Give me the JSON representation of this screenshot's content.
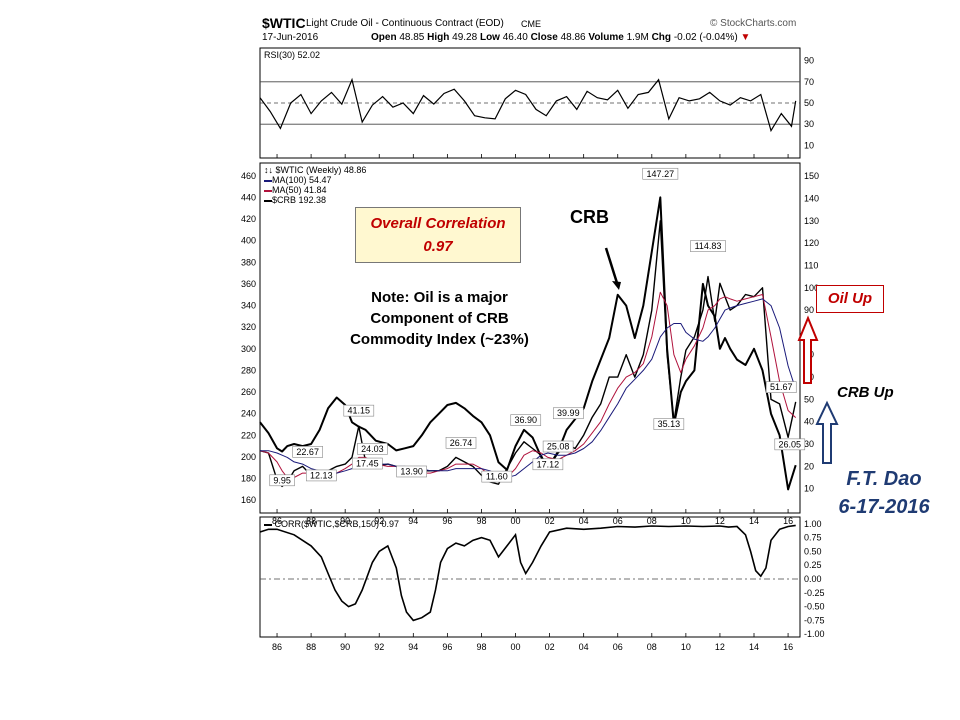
{
  "header": {
    "symbol": "$WTIC",
    "name": "Light Crude Oil - Continuous Contract (EOD)",
    "exchange": "CME",
    "source": "© StockCharts.com",
    "date": "17-Jun-2016",
    "open_label": "Open",
    "open": "48.85",
    "high_label": "High",
    "high": "49.28",
    "low_label": "Low",
    "low": "46.40",
    "close_label": "Close",
    "close": "48.86",
    "volume_label": "Volume",
    "volume": "1.9M",
    "chg_label": "Chg",
    "chg": "-0.02 (-0.04%)"
  },
  "colors": {
    "oil": "#000000",
    "crb": "#000000",
    "ma100": "#1a1a7a",
    "ma50": "#b0123c",
    "oil_up_arrow": "#c00000",
    "crb_up_arrow": "#1f3b73",
    "correlation_text": "#c00000",
    "author_text": "#1f3b73"
  },
  "chart_data": [
    {
      "type": "line",
      "title": "RSI(30) 52.02",
      "legend_label": "RSI(30) 52.02",
      "ylim": [
        0,
        100
      ],
      "yticks": [
        10,
        30,
        50,
        70,
        90
      ],
      "reference_lines": [
        30,
        50,
        70
      ],
      "x": [
        1985.0,
        1985.6,
        1986.2,
        1986.8,
        1987.4,
        1988.0,
        1988.6,
        1989.2,
        1989.8,
        1990.4,
        1991.0,
        1991.6,
        1992.2,
        1992.8,
        1993.4,
        1994.0,
        1994.6,
        1995.2,
        1995.8,
        1996.4,
        1997.0,
        1997.6,
        1998.2,
        1998.8,
        1999.4,
        2000.0,
        2000.6,
        2001.2,
        2001.8,
        2002.4,
        2003.0,
        2003.6,
        2004.2,
        2004.8,
        2005.4,
        2006.0,
        2006.6,
        2007.2,
        2007.8,
        2008.4,
        2009.0,
        2009.6,
        2010.2,
        2010.8,
        2011.4,
        2012.0,
        2012.6,
        2013.2,
        2013.8,
        2014.4,
        2015.0,
        2015.6,
        2016.2,
        2016.45
      ],
      "series": [
        {
          "values": [
            55,
            42,
            26,
            50,
            58,
            40,
            52,
            60,
            49,
            72,
            32,
            48,
            56,
            46,
            50,
            40,
            57,
            49,
            59,
            63,
            52,
            38,
            36,
            35,
            54,
            62,
            58,
            44,
            38,
            52,
            56,
            44,
            61,
            55,
            53,
            62,
            45,
            58,
            60,
            72,
            35,
            55,
            52,
            54,
            60,
            52,
            48,
            55,
            52,
            58,
            24,
            40,
            28,
            52.02
          ]
        }
      ]
    },
    {
      "type": "line",
      "title": "$WTIC (Weekly) 48.86",
      "legend": [
        "$WTIC (Weekly) 48.86",
        "MA(100) 54.47",
        "MA(50) 41.84",
        "$CRB 192.38"
      ],
      "x_ticks": [
        "86",
        "88",
        "90",
        "92",
        "94",
        "96",
        "98",
        "00",
        "02",
        "04",
        "06",
        "08",
        "10",
        "12",
        "14",
        "16"
      ],
      "xlim": [
        1985.0,
        2016.7
      ],
      "crb_axis_left": {
        "ylim": [
          150,
          470
        ],
        "yticks": [
          160,
          180,
          200,
          220,
          240,
          260,
          280,
          300,
          320,
          340,
          360,
          380,
          400,
          420,
          440,
          460
        ]
      },
      "oil_axis_right": {
        "ylim": [
          0,
          155
        ],
        "yticks": [
          10,
          20,
          30,
          40,
          50,
          60,
          70,
          80,
          90,
          100,
          110,
          120,
          130,
          140,
          150
        ]
      },
      "x": [
        1985.0,
        1985.5,
        1986.0,
        1986.3,
        1986.6,
        1987.0,
        1987.5,
        1988.0,
        1988.5,
        1989.0,
        1989.5,
        1990.0,
        1990.4,
        1990.8,
        1991.2,
        1991.8,
        1992.5,
        1993.0,
        1993.5,
        1994.0,
        1994.5,
        1995.0,
        1995.5,
        1996.0,
        1996.5,
        1997.0,
        1997.5,
        1998.0,
        1998.5,
        1999.0,
        1999.5,
        2000.0,
        2000.5,
        2001.0,
        2001.5,
        2001.9,
        2002.5,
        2003.0,
        2003.5,
        2004.0,
        2004.5,
        2005.0,
        2005.5,
        2006.0,
        2006.5,
        2007.0,
        2007.5,
        2008.0,
        2008.5,
        2008.9,
        2009.3,
        2009.7,
        2010.0,
        2010.5,
        2011.0,
        2011.3,
        2011.7,
        2012.0,
        2012.3,
        2012.6,
        2013.0,
        2013.5,
        2014.0,
        2014.5,
        2015.0,
        2015.5,
        2016.0,
        2016.45
      ],
      "series": [
        {
          "name": "$WTIC (Weekly) 48.86",
          "axis": "right",
          "values": [
            27,
            26,
            14,
            11,
            13,
            18,
            20,
            16,
            14,
            18,
            20,
            21,
            24,
            38,
            22,
            20,
            21,
            20,
            18,
            16,
            18,
            18,
            18,
            20,
            24,
            22,
            20,
            16,
            13,
            12,
            19,
            26,
            31,
            28,
            25,
            19,
            26,
            30,
            28,
            34,
            42,
            48,
            60,
            60,
            70,
            60,
            70,
            90,
            130,
            70,
            40,
            60,
            72,
            78,
            90,
            105,
            85,
            102,
            96,
            90,
            92,
            97,
            96,
            100,
            50,
            48,
            33,
            48.86
          ]
        },
        {
          "name": "MA(100) 54.47",
          "axis": "right",
          "values": [
            27,
            27,
            26,
            25,
            24,
            22,
            21,
            19,
            18,
            17,
            17,
            18,
            19,
            20,
            21,
            21,
            21,
            20,
            20,
            19,
            19,
            18,
            18,
            18,
            19,
            19,
            19,
            19,
            18,
            16,
            15,
            16,
            19,
            22,
            25,
            26,
            25,
            25,
            26,
            28,
            31,
            36,
            42,
            48,
            55,
            59,
            63,
            68,
            78,
            82,
            84,
            84,
            80,
            77,
            76,
            78,
            82,
            86,
            90,
            91,
            92,
            93,
            94,
            95,
            92,
            82,
            65,
            54.47
          ]
        },
        {
          "name": "MA(50) 41.84",
          "axis": "right",
          "values": [
            27,
            26,
            22,
            18,
            15,
            15,
            17,
            17,
            16,
            16,
            17,
            19,
            21,
            24,
            24,
            21,
            20,
            20,
            19,
            18,
            17,
            17,
            18,
            19,
            21,
            21,
            21,
            19,
            16,
            14,
            15,
            19,
            25,
            27,
            26,
            24,
            23,
            25,
            27,
            30,
            35,
            40,
            48,
            55,
            60,
            62,
            66,
            78,
            98,
            92,
            70,
            62,
            68,
            74,
            82,
            90,
            92,
            95,
            96,
            95,
            94,
            95,
            96,
            97,
            78,
            58,
            45,
            41.84
          ]
        },
        {
          "name": "$CRB 192.38",
          "axis": "left",
          "values": [
            232,
            222,
            208,
            205,
            210,
            212,
            210,
            212,
            225,
            245,
            255,
            248,
            232,
            228,
            225,
            215,
            212,
            206,
            208,
            210,
            220,
            232,
            240,
            248,
            250,
            245,
            238,
            232,
            220,
            195,
            188,
            210,
            225,
            218,
            200,
            190,
            205,
            225,
            235,
            245,
            270,
            290,
            310,
            350,
            340,
            310,
            340,
            390,
            440,
            300,
            230,
            260,
            270,
            280,
            360,
            340,
            330,
            300,
            310,
            300,
            290,
            285,
            300,
            280,
            240,
            220,
            170,
            192.38
          ]
        }
      ],
      "labels": [
        {
          "text": "9.95",
          "x": 1986.3,
          "y": 9.95
        },
        {
          "text": "22.67",
          "x": 1987.8,
          "y": 22.67
        },
        {
          "text": "12.13",
          "x": 1988.6,
          "y": 12.13
        },
        {
          "text": "41.15",
          "x": 1990.8,
          "y": 41.15
        },
        {
          "text": "24.03",
          "x": 1991.6,
          "y": 24.03
        },
        {
          "text": "17.45",
          "x": 1991.3,
          "y": 17.45
        },
        {
          "text": "13.90",
          "x": 1993.9,
          "y": 13.9
        },
        {
          "text": "26.74",
          "x": 1996.8,
          "y": 26.74
        },
        {
          "text": "11.60",
          "x": 1998.9,
          "y": 11.6
        },
        {
          "text": "36.90",
          "x": 2000.6,
          "y": 36.9
        },
        {
          "text": "39.99",
          "x": 2003.1,
          "y": 39.99
        },
        {
          "text": "17.12",
          "x": 2001.9,
          "y": 17.12
        },
        {
          "text": "25.08",
          "x": 2002.5,
          "y": 25.08
        },
        {
          "text": "147.27",
          "x": 2008.5,
          "y": 147.27
        },
        {
          "text": "35.13",
          "x": 2009.0,
          "y": 35.13
        },
        {
          "text": "114.83",
          "x": 2011.3,
          "y": 114.83
        },
        {
          "text": "51.67",
          "x": 2015.6,
          "y": 51.67
        },
        {
          "text": "26.05",
          "x": 2016.1,
          "y": 26.05
        }
      ]
    },
    {
      "type": "line",
      "title": "CORR($WTIC,$CRB,150) 0.97",
      "legend_label": "CORR($WTIC,$CRB,150) 0.97",
      "ylim": [
        -1.05,
        1.05
      ],
      "yticks": [
        -1.0,
        -0.75,
        -0.5,
        -0.25,
        0.0,
        0.25,
        0.5,
        0.75,
        1.0
      ],
      "ytick_labels": [
        "-1.00",
        "-0.75",
        "-0.50",
        "-0.25",
        "0.00",
        "0.25",
        "0.50",
        "0.75",
        "1.00"
      ],
      "reference_lines": [
        0.0
      ],
      "x": [
        1985.0,
        1985.5,
        1986.0,
        1987.0,
        1988.0,
        1988.6,
        1989.0,
        1989.4,
        1989.8,
        1990.2,
        1990.6,
        1991.0,
        1991.6,
        1992.0,
        1992.5,
        1993.0,
        1993.3,
        1993.6,
        1994.0,
        1994.5,
        1995.0,
        1995.3,
        1995.6,
        1996.0,
        1996.5,
        1997.0,
        1997.5,
        1998.0,
        1998.5,
        1999.0,
        1999.5,
        2000.0,
        2000.3,
        2000.6,
        2001.0,
        2001.5,
        2002.0,
        2003.0,
        2004.0,
        2005.0,
        2006.0,
        2007.0,
        2008.0,
        2009.0,
        2010.0,
        2011.0,
        2012.0,
        2012.5,
        2013.0,
        2013.5,
        2013.8,
        2014.1,
        2014.4,
        2014.7,
        2015.0,
        2015.5,
        2016.0,
        2016.45
      ],
      "series": [
        {
          "name": "CORR($WTIC,$CRB,150) 0.97",
          "values": [
            0.85,
            0.9,
            0.9,
            0.8,
            0.6,
            0.4,
            0.1,
            -0.2,
            -0.4,
            -0.5,
            -0.45,
            -0.2,
            0.3,
            0.5,
            0.6,
            0.2,
            -0.3,
            -0.6,
            -0.75,
            -0.7,
            -0.6,
            -0.2,
            0.3,
            0.55,
            0.65,
            0.6,
            0.7,
            0.75,
            0.7,
            0.4,
            0.6,
            0.8,
            0.3,
            0.1,
            0.3,
            0.6,
            0.85,
            0.92,
            0.9,
            0.92,
            0.95,
            0.94,
            0.96,
            0.95,
            0.96,
            0.95,
            0.96,
            0.94,
            0.95,
            0.8,
            0.5,
            0.15,
            0.05,
            0.2,
            0.7,
            0.9,
            0.95,
            0.97
          ]
        }
      ]
    }
  ],
  "annotations": {
    "correlation_title": "Overall Correlation",
    "correlation_value": "0.97",
    "note_line1": "Note:  Oil is a major",
    "note_line2": "Component of CRB",
    "note_line3": "Commodity Index (~23%)",
    "crb_label": "CRB",
    "oil_up": "Oil Up",
    "crb_up": "CRB Up",
    "author": "F.T. Dao",
    "author_date": "6-17-2016"
  }
}
